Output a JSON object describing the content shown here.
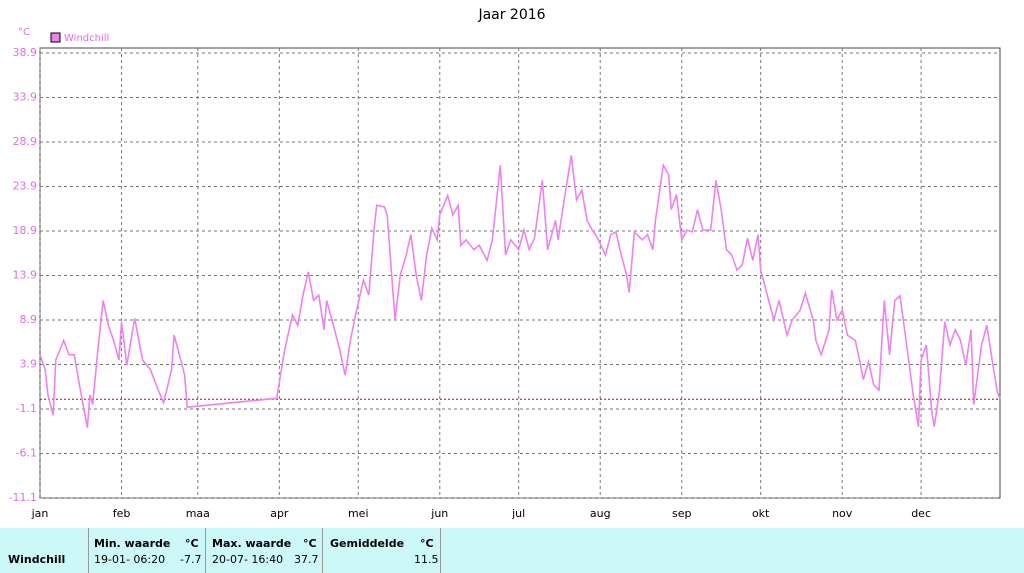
{
  "chart_data": {
    "type": "line",
    "title": "Jaar 2016",
    "y_unit": "°C",
    "xlim": [
      0,
      365
    ],
    "xticks": [
      {
        "value": 0,
        "label": "jan"
      },
      {
        "value": 31,
        "label": "feb"
      },
      {
        "value": 60,
        "label": "maa"
      },
      {
        "value": 91,
        "label": "apr"
      },
      {
        "value": 121,
        "label": "mei"
      },
      {
        "value": 152,
        "label": "jun"
      },
      {
        "value": 182,
        "label": "jul"
      },
      {
        "value": 213,
        "label": "aug"
      },
      {
        "value": 244,
        "label": "sep"
      },
      {
        "value": 274,
        "label": "okt"
      },
      {
        "value": 305,
        "label": "nov"
      },
      {
        "value": 335,
        "label": "dec"
      }
    ],
    "ylim": [
      -11.1,
      38.9
    ],
    "yticks": [
      -11.1,
      -6.1,
      -1.1,
      3.9,
      8.9,
      13.9,
      18.9,
      23.9,
      28.9,
      33.9,
      38.9
    ],
    "grid": true,
    "reference_line": {
      "value": 0,
      "color": "#c00000"
    },
    "x": [
      0,
      2,
      3,
      5,
      6,
      9,
      11,
      13,
      15,
      18,
      19,
      20,
      22,
      24,
      26,
      28,
      30,
      31,
      33,
      36,
      39,
      42,
      45,
      47,
      50,
      51,
      53,
      55,
      56,
      90,
      93,
      96,
      98,
      100,
      102,
      104,
      106,
      108,
      109,
      112,
      114,
      116,
      118,
      120,
      123,
      125,
      127,
      128,
      131,
      132,
      134,
      135,
      137,
      139,
      141,
      143,
      145,
      147,
      149,
      151,
      152,
      155,
      157,
      159,
      160,
      162,
      165,
      167,
      170,
      172,
      175,
      177,
      179,
      182,
      184,
      186,
      188,
      191,
      193,
      196,
      197,
      199,
      202,
      204,
      206,
      208,
      210,
      212,
      215,
      217,
      219,
      221,
      223,
      224,
      226,
      229,
      231,
      233,
      234,
      237,
      239,
      240,
      242,
      244,
      246,
      248,
      250,
      252,
      255,
      257,
      259,
      261,
      263,
      265,
      267,
      269,
      271,
      273,
      274,
      276,
      279,
      281,
      284,
      286,
      289,
      291,
      294,
      295,
      297,
      300,
      301,
      303,
      305,
      307,
      310,
      312,
      313,
      315,
      317,
      319,
      321,
      323,
      325,
      327,
      329,
      332,
      334,
      335,
      337,
      339,
      340,
      342,
      344,
      346,
      348,
      350,
      352,
      354,
      355,
      358,
      360,
      362,
      364,
      365
    ],
    "series": [
      {
        "name": "Windchill",
        "color": "#ee82ee",
        "values": [
          5.0,
          3.3,
          0.5,
          -1.8,
          4.4,
          6.6,
          5.0,
          5.0,
          1.6,
          -3.2,
          0.5,
          -0.6,
          5.5,
          11.1,
          8.3,
          6.6,
          4.4,
          8.7,
          3.8,
          9.1,
          4.4,
          3.3,
          1.0,
          -0.4,
          3.3,
          7.2,
          5.0,
          2.7,
          -0.9,
          0.1,
          5.5,
          9.5,
          8.3,
          11.7,
          14.3,
          11.1,
          11.7,
          7.8,
          11.1,
          7.8,
          5.5,
          2.7,
          6.6,
          9.5,
          13.4,
          11.7,
          19.0,
          21.8,
          21.6,
          20.7,
          12.8,
          8.9,
          14.0,
          15.9,
          18.5,
          14.0,
          11.1,
          16.2,
          19.2,
          17.9,
          20.7,
          22.9,
          20.7,
          21.8,
          17.3,
          17.9,
          16.8,
          17.3,
          15.6,
          17.9,
          26.3,
          16.2,
          17.9,
          16.8,
          19.0,
          16.8,
          18.1,
          24.6,
          16.8,
          20.1,
          17.9,
          21.8,
          27.4,
          22.4,
          23.5,
          20.1,
          19.0,
          18.1,
          16.2,
          18.5,
          18.8,
          16.2,
          14.0,
          12.0,
          18.8,
          17.9,
          18.5,
          16.8,
          20.1,
          26.3,
          25.2,
          21.3,
          23.0,
          17.9,
          19.0,
          18.8,
          21.3,
          19.0,
          19.0,
          24.6,
          21.3,
          16.8,
          16.2,
          14.5,
          15.1,
          18.1,
          15.6,
          18.5,
          14.5,
          12.3,
          8.9,
          11.1,
          7.2,
          8.9,
          10.0,
          11.9,
          8.9,
          6.6,
          5.0,
          7.8,
          12.3,
          8.9,
          10.0,
          7.2,
          6.6,
          3.8,
          2.2,
          4.2,
          1.6,
          1.0,
          11.1,
          5.0,
          11.1,
          11.6,
          7.2,
          0.5,
          -3.1,
          4.4,
          6.1,
          -1.2,
          -3.1,
          1.0,
          8.7,
          6.1,
          7.8,
          6.6,
          3.8,
          7.8,
          -0.6,
          6.1,
          8.3,
          4.4,
          0.8,
          0.1
        ]
      }
    ]
  },
  "table": {
    "header": [
      "Min. waarde",
      "°C",
      "Max. waarde",
      "°C",
      "Gemiddelde",
      "°C"
    ],
    "rows": [
      [
        "Windchill",
        "19-01- 06:20",
        "-7.7",
        "20-07- 16:40",
        "37.7",
        "11.5"
      ]
    ]
  }
}
